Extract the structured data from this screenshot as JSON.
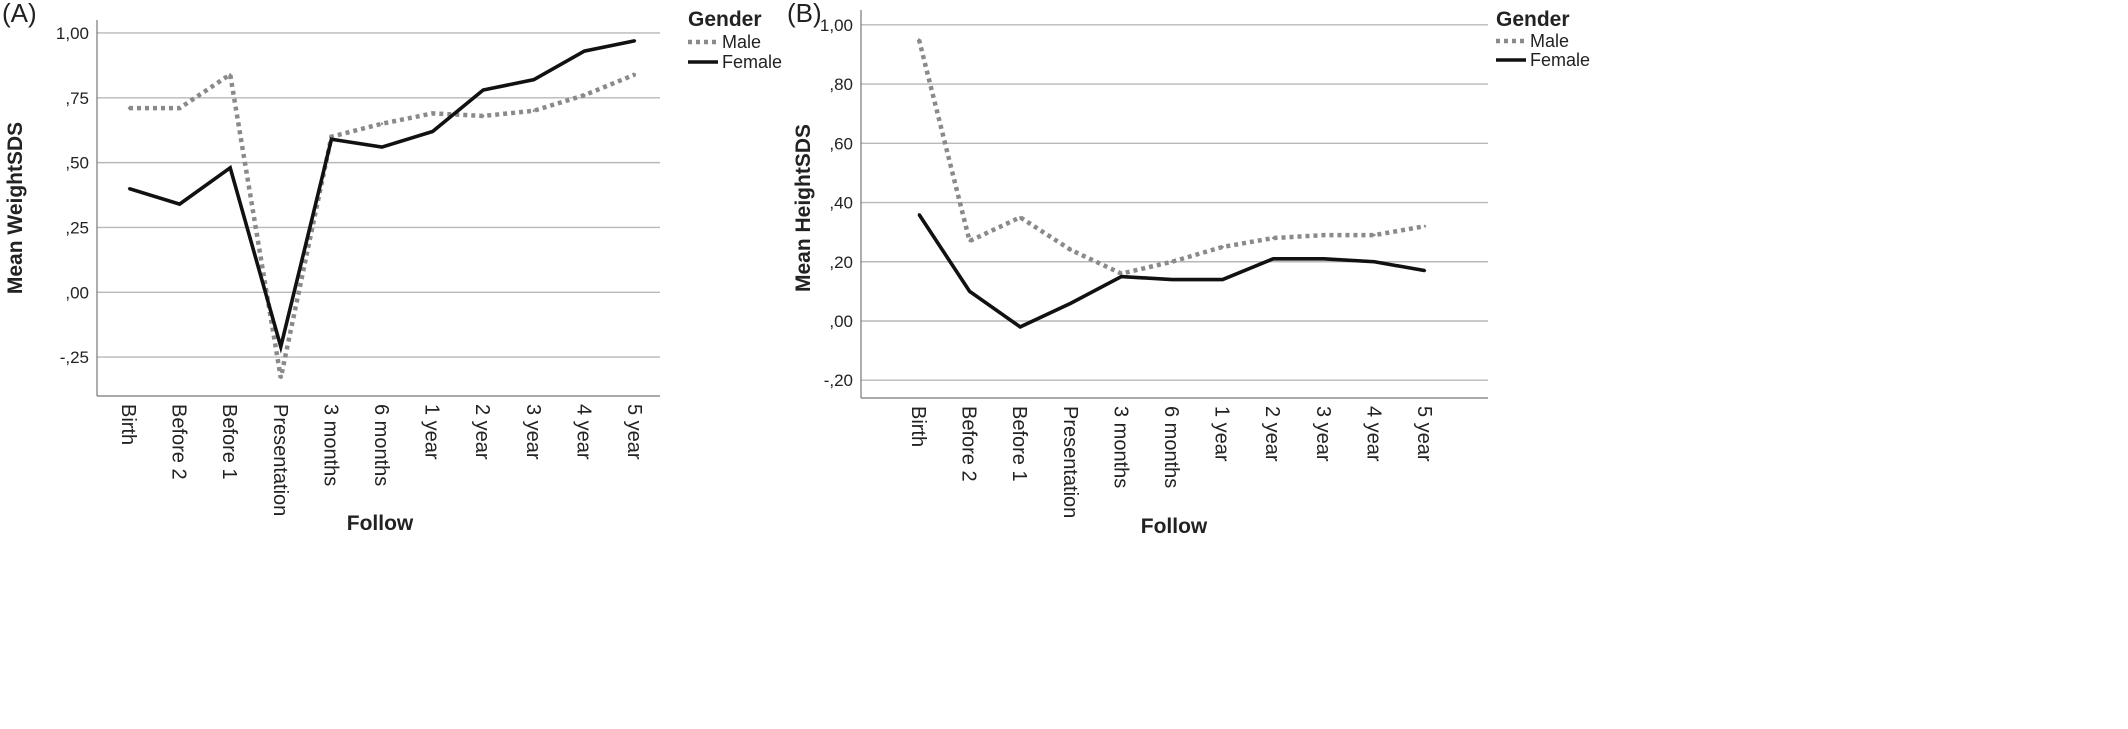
{
  "chart_data": [
    {
      "type": "line",
      "panel_label": "(A)",
      "xlabel": "Follow",
      "ylabel": "Mean WeightSDS",
      "ylim": [
        -0.4,
        1.05
      ],
      "yticks": [
        1.0,
        0.75,
        0.5,
        0.25,
        0.0,
        -0.25
      ],
      "yticklabels": [
        "1,00",
        ",75",
        ",50",
        ",25",
        ",00",
        "-,25"
      ],
      "categories": [
        "Birth",
        "Before 2",
        "Before 1",
        "Presentation",
        "3 months",
        "6 months",
        "1 year",
        "2 year",
        "3 year",
        "4 year",
        "5 year"
      ],
      "grid": "horizontal",
      "legend": {
        "title": "Gender",
        "placement": "top-right"
      },
      "series": [
        {
          "name": "Male",
          "style": "dotted",
          "color": "#8a8a8a",
          "values": [
            0.71,
            0.71,
            0.84,
            -0.33,
            0.6,
            0.65,
            0.69,
            0.68,
            0.7,
            0.76,
            0.84
          ]
        },
        {
          "name": "Female",
          "style": "solid",
          "color": "#111111",
          "values": [
            0.4,
            0.34,
            0.48,
            -0.21,
            0.59,
            0.56,
            0.62,
            0.78,
            0.82,
            0.93,
            0.97
          ]
        }
      ]
    },
    {
      "type": "line",
      "panel_label": "(B)",
      "xlabel": "Follow",
      "ylabel": "Mean HeightSDS",
      "ylim": [
        -0.26,
        1.05
      ],
      "yticks": [
        1.0,
        0.8,
        0.6,
        0.4,
        0.2,
        0.0,
        -0.2
      ],
      "yticklabels": [
        "1,00",
        ",80",
        ",60",
        ",40",
        ",20",
        ",00",
        "-,20"
      ],
      "categories": [
        "Birth",
        "Before 2",
        "Before 1",
        "Presentation",
        "3 months",
        "6 months",
        "1 year",
        "2 year",
        "3 year",
        "4 year",
        "5 year"
      ],
      "grid": "horizontal",
      "legend": {
        "title": "Gender",
        "placement": "top-right"
      },
      "series": [
        {
          "name": "Male",
          "style": "dotted",
          "color": "#8a8a8a",
          "values": [
            0.95,
            0.27,
            0.35,
            0.24,
            0.16,
            0.2,
            0.25,
            0.28,
            0.29,
            0.29,
            0.32
          ]
        },
        {
          "name": "Female",
          "style": "solid",
          "color": "#111111",
          "values": [
            0.36,
            0.1,
            -0.02,
            0.06,
            0.15,
            0.14,
            0.14,
            0.21,
            0.21,
            0.2,
            0.17
          ]
        }
      ]
    }
  ]
}
